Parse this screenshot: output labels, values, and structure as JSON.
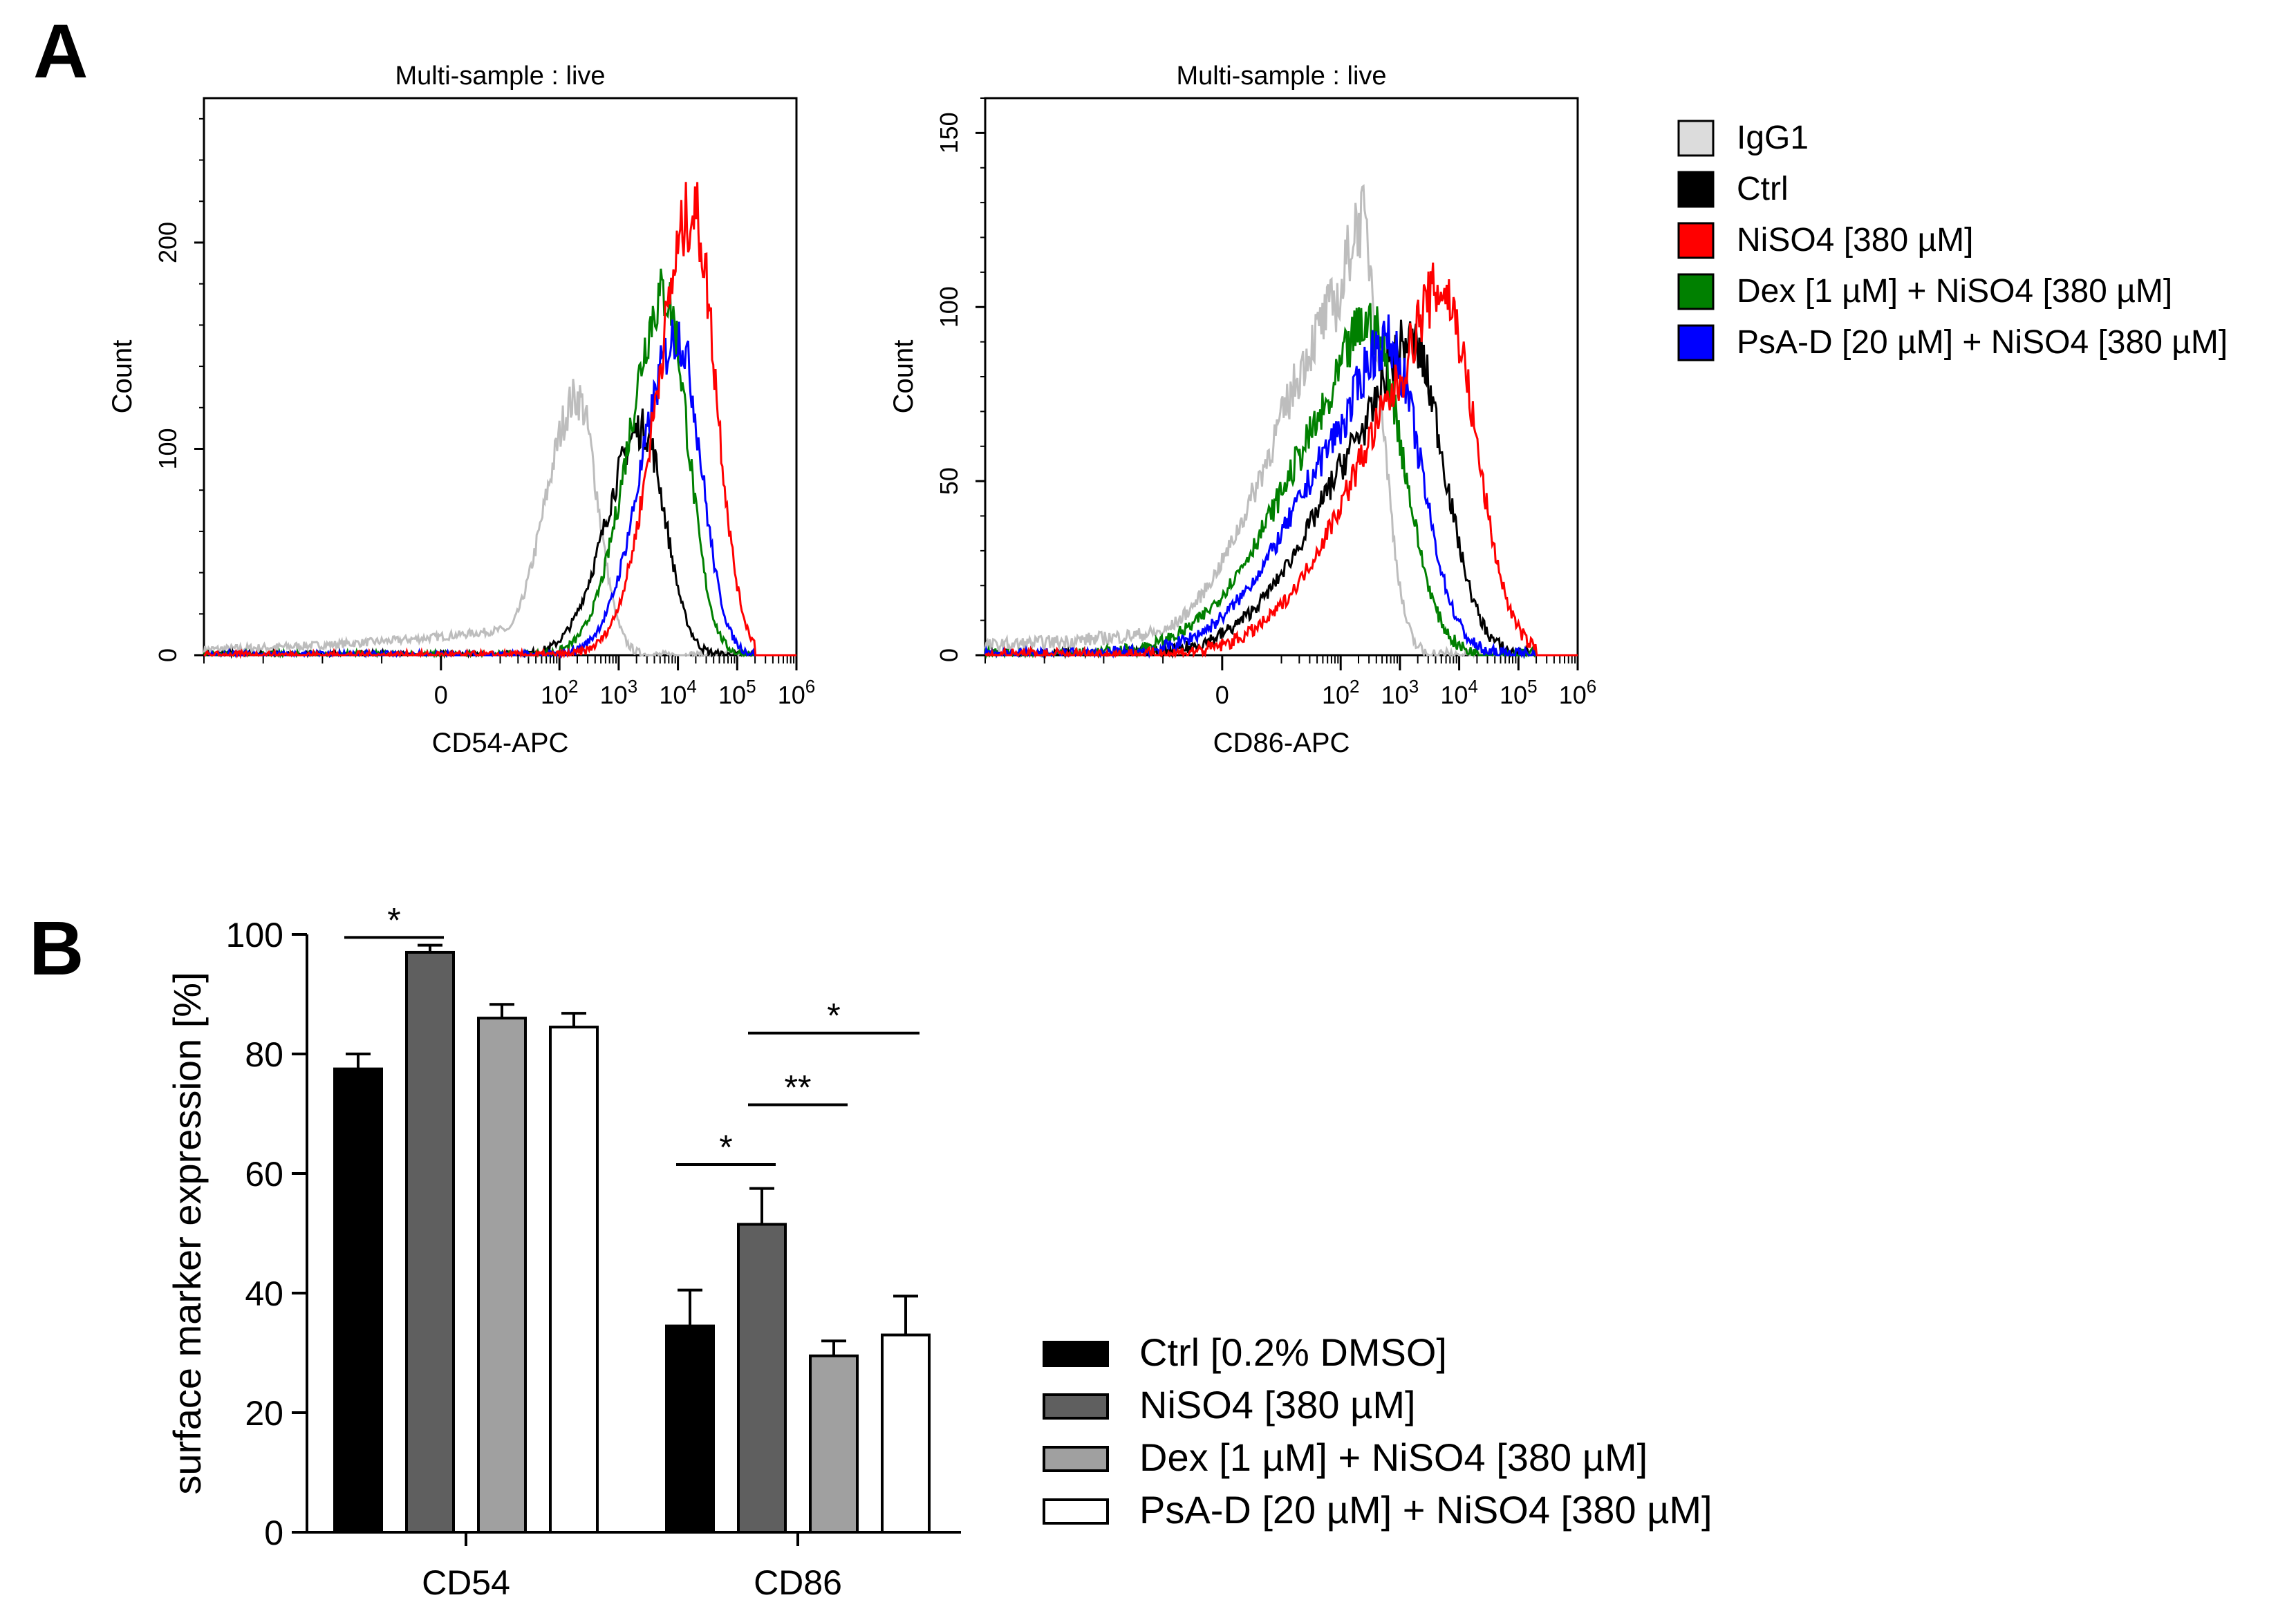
{
  "panel_labels": {
    "a": "A",
    "b": "B"
  },
  "colors": {
    "IgG1": "#bdbdbd",
    "Ctrl": "#000000",
    "NiSO4": "#ff0000",
    "Dex": "#008000",
    "PsA-D": "#0000ff",
    "bar_ctrl": "#000000",
    "bar_niso4": "#5f5f5f",
    "bar_dex": "#a0a0a0",
    "bar_psad": "#ffffff"
  },
  "histogram_legend": [
    {
      "key": "IgG1",
      "label": "IgG1",
      "fill": "#dcdcdc"
    },
    {
      "key": "Ctrl",
      "label": "Ctrl",
      "fill": "#000000"
    },
    {
      "key": "NiSO4",
      "label": "NiSO4 [380 µM]",
      "fill": "#ff0000"
    },
    {
      "key": "Dex",
      "label": "Dex [1 µM] + NiSO4 [380 µM]",
      "fill": "#008000"
    },
    {
      "key": "PsA-D",
      "label": "PsA-D [20 µM] + NiSO4 [380 µM]",
      "fill": "#0000ff"
    }
  ],
  "chart_data": [
    {
      "type": "line",
      "title": "Multi-sample : live",
      "xlabel": "CD54-APC",
      "ylabel": "Count",
      "x_scale": "biexponential",
      "x_tick_labels": [
        "0",
        "10^2",
        "10^3",
        "10^4",
        "10^5",
        "10^6"
      ],
      "y_ticks": [
        0,
        100,
        200
      ],
      "ylim": [
        0,
        270
      ],
      "series": [
        {
          "name": "IgG1",
          "peak_x": 200,
          "peak_count": 125
        },
        {
          "name": "Ctrl",
          "peak_x": 2500,
          "peak_count": 110
        },
        {
          "name": "NiSO4 [380 µM]",
          "peak_x": 18000,
          "peak_count": 215
        },
        {
          "name": "Dex [1 µM] + NiSO4 [380 µM]",
          "peak_x": 6000,
          "peak_count": 175
        },
        {
          "name": "PsA-D [20 µM] + NiSO4 [380 µM]",
          "peak_x": 10000,
          "peak_count": 155
        }
      ]
    },
    {
      "type": "line",
      "title": "Multi-sample : live",
      "xlabel": "CD86-APC",
      "ylabel": "Count",
      "x_scale": "biexponential",
      "x_tick_labels": [
        "0",
        "10^2",
        "10^3",
        "10^4",
        "10^5",
        "10^6"
      ],
      "y_ticks": [
        0,
        50,
        100,
        150
      ],
      "ylim": [
        0,
        160
      ],
      "series": [
        {
          "name": "IgG1",
          "peak_x": 220,
          "peak_count": 125
        },
        {
          "name": "Ctrl",
          "peak_x": 1500,
          "peak_count": 90
        },
        {
          "name": "NiSO4 [380 µM]",
          "peak_x": 5000,
          "peak_count": 105
        },
        {
          "name": "Dex [1 µM] + NiSO4 [380 µM]",
          "peak_x": 300,
          "peak_count": 95
        },
        {
          "name": "PsA-D [20 µM] + NiSO4 [380 µM]",
          "peak_x": 600,
          "peak_count": 90
        }
      ]
    },
    {
      "type": "bar",
      "categories": [
        "CD54",
        "CD86"
      ],
      "ylabel": "surface marker expression [%]",
      "ylim": [
        0,
        100
      ],
      "y_ticks": [
        0,
        20,
        40,
        60,
        80,
        100
      ],
      "series": [
        {
          "name": "Ctrl [0.2% DMSO]",
          "values": [
            77.5,
            34.5
          ],
          "errors": [
            2.5,
            6.0
          ],
          "color": "#000000"
        },
        {
          "name": "NiSO4 [380 µM]",
          "values": [
            97,
            51.5
          ],
          "errors": [
            1.2,
            6.0
          ],
          "color": "#5f5f5f"
        },
        {
          "name": "Dex [1 µM] + NiSO4 [380 µM]",
          "values": [
            86,
            29.5
          ],
          "errors": [
            2.3,
            2.5
          ],
          "color": "#a0a0a0"
        },
        {
          "name": "PsA-D [20 µM] + NiSO4 [380 µM]",
          "values": [
            84.5,
            33
          ],
          "errors": [
            2.3,
            6.5
          ],
          "color": "#ffffff"
        }
      ],
      "significance": [
        {
          "category": 0,
          "from": 0,
          "to": 1,
          "label": "*",
          "level": 99.5
        },
        {
          "category": 1,
          "from": 0,
          "to": 1,
          "label": "*",
          "level": 61.5
        },
        {
          "category": 1,
          "from": 1,
          "to": 2,
          "label": "**",
          "level": 71.5
        },
        {
          "category": 1,
          "from": 1,
          "to": 3,
          "label": "*",
          "level": 83.5
        }
      ]
    }
  ]
}
